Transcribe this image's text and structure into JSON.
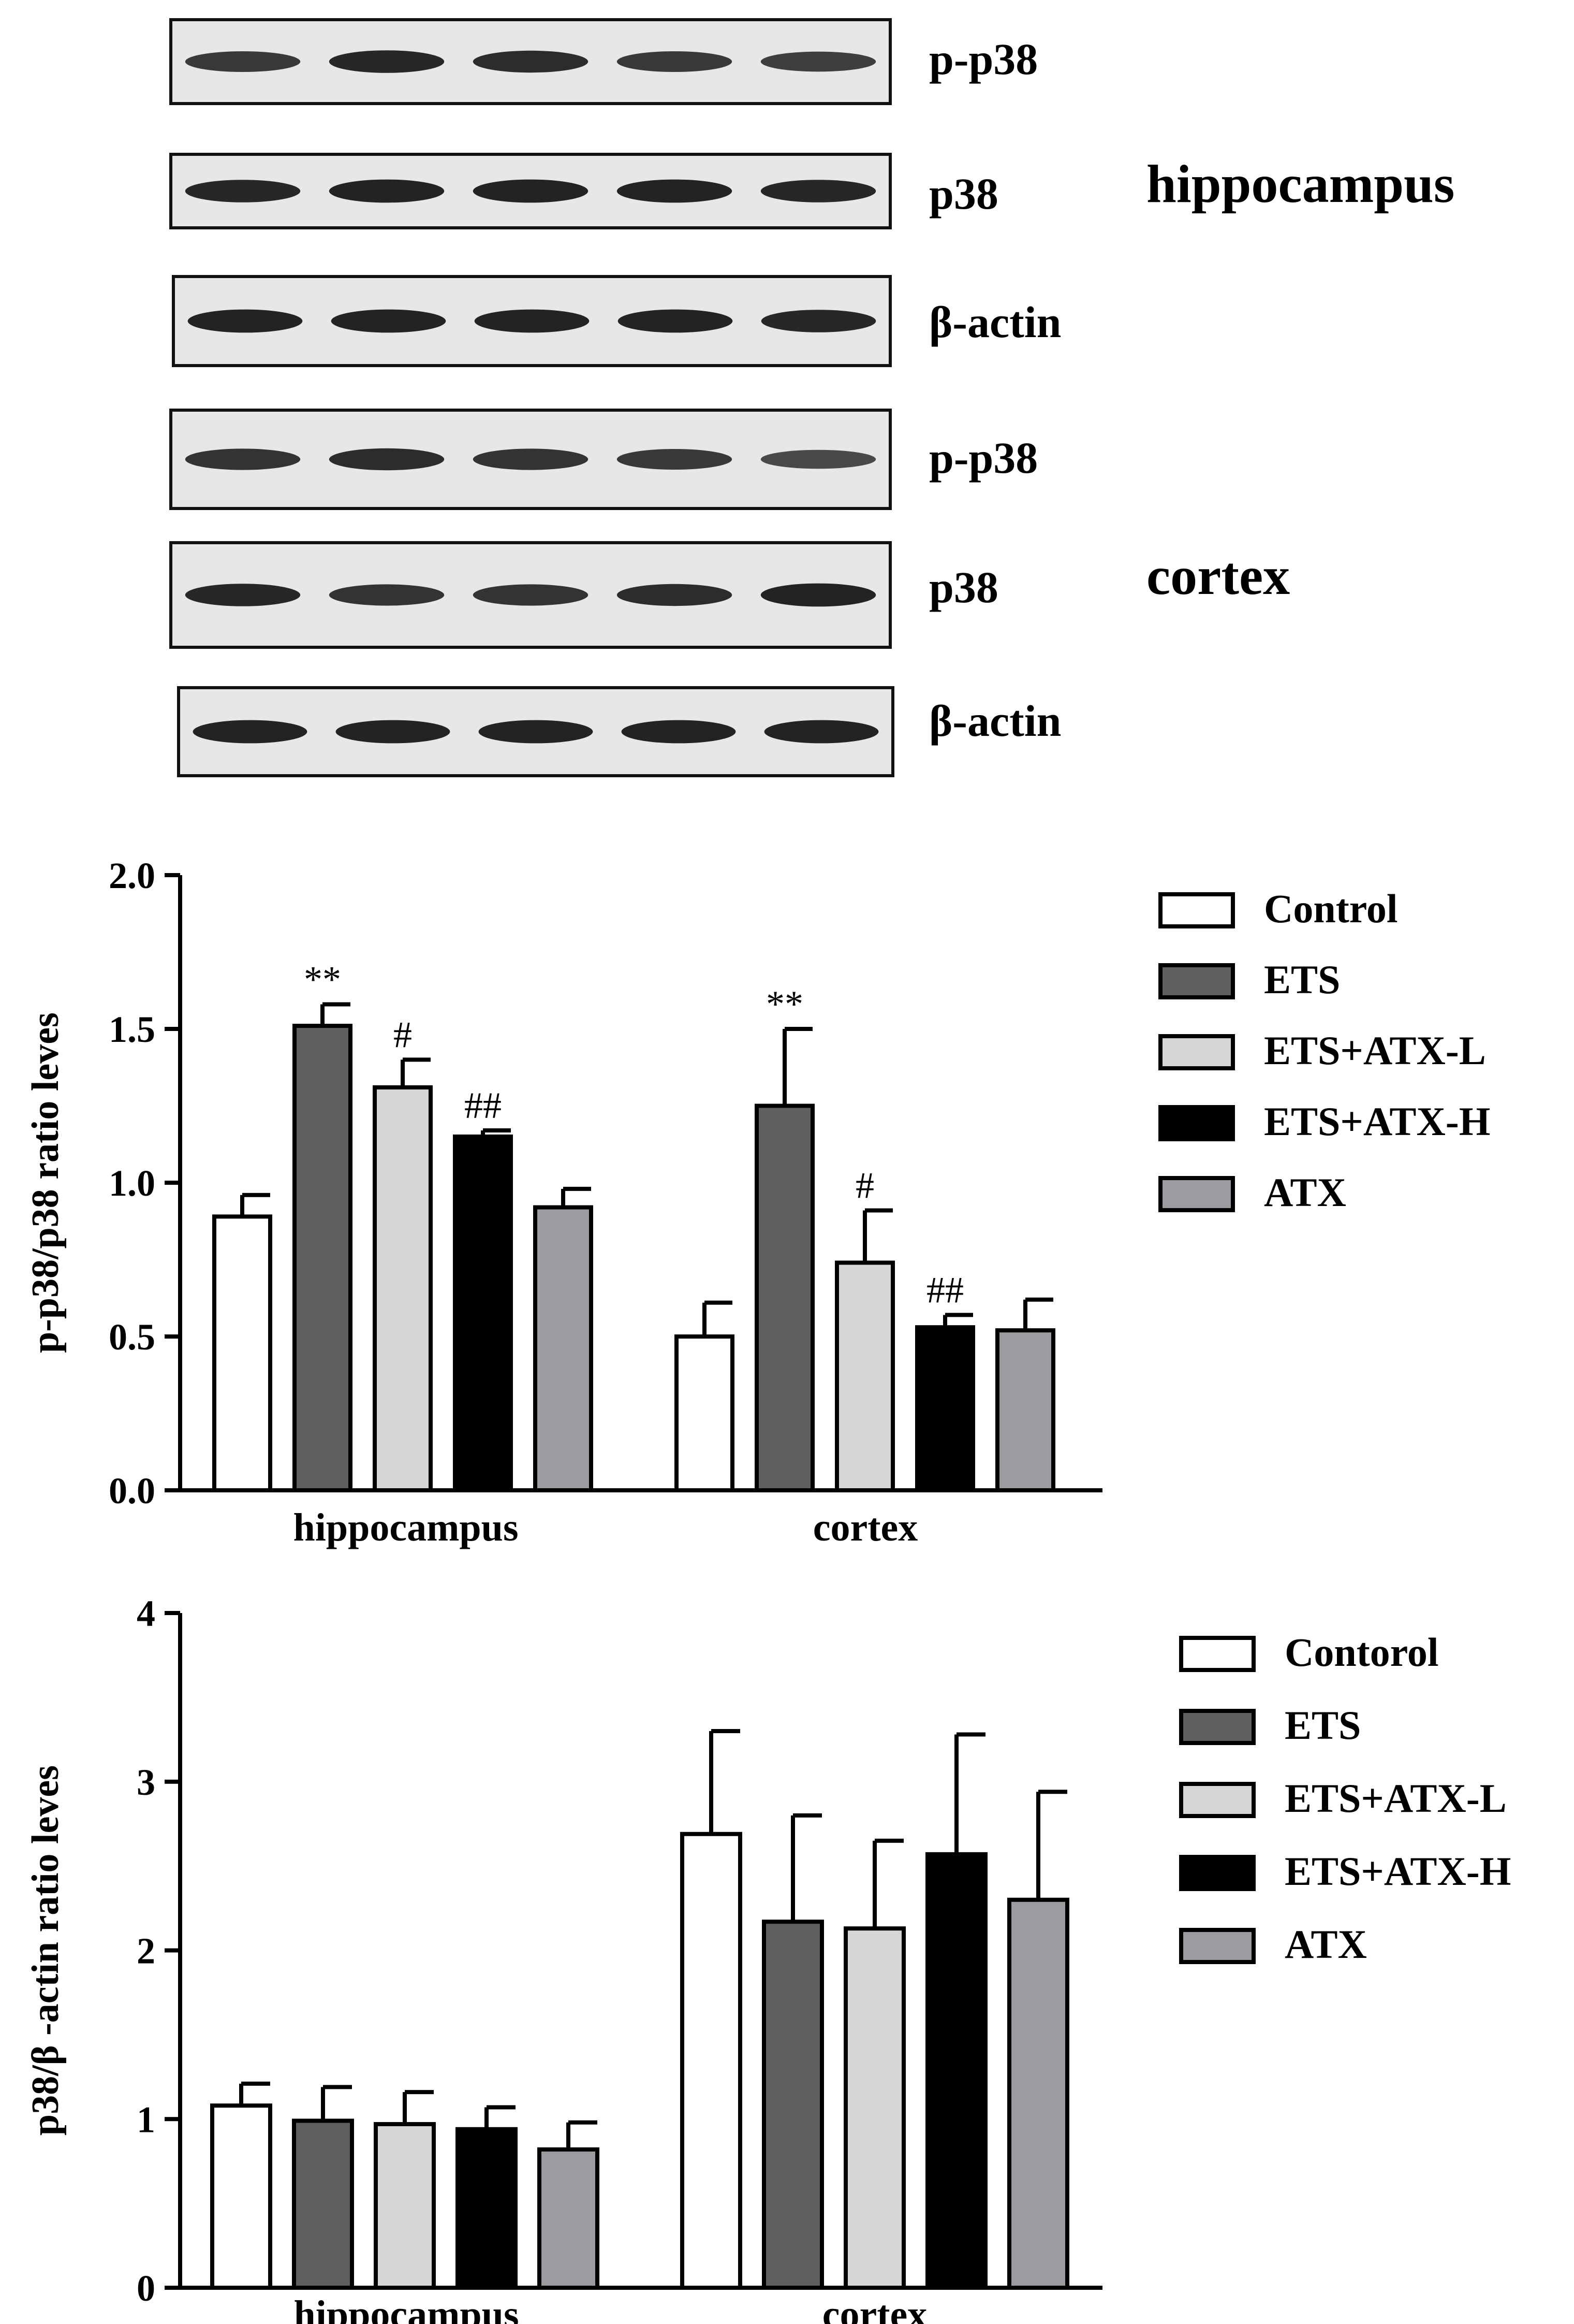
{
  "colors": {
    "control": "#ffffff",
    "ets": "#5f5f5f",
    "ets_atx_l": "#d6d6d6",
    "ets_atx_h": "#000000",
    "atx": "#9c9ca0",
    "blot_bg": "#e7e7e7",
    "band": "#1c1c1c"
  },
  "blots": {
    "lanes": 5,
    "groups": [
      {
        "region": "hippocampus",
        "rows": [
          {
            "label": "p-p38",
            "intensity": [
              0.75,
              0.9,
              0.85,
              0.75,
              0.7
            ]
          },
          {
            "label": "p38",
            "intensity": [
              0.9,
              0.95,
              0.95,
              0.95,
              0.9
            ]
          },
          {
            "label": "β-actin",
            "intensity": [
              0.95,
              0.95,
              0.95,
              0.95,
              0.9
            ]
          }
        ]
      },
      {
        "region": "cortex",
        "rows": [
          {
            "label": "p-p38",
            "intensity": [
              0.8,
              0.85,
              0.8,
              0.75,
              0.6
            ]
          },
          {
            "label": "p38",
            "intensity": [
              0.9,
              0.8,
              0.8,
              0.85,
              0.95
            ]
          },
          {
            "label": "β-actin",
            "intensity": [
              0.95,
              0.95,
              0.95,
              0.95,
              0.95
            ]
          }
        ]
      }
    ]
  },
  "chart_data": [
    {
      "type": "bar",
      "ylabel": "p-p38/p38 ratio leves",
      "categories": [
        "hippocampus",
        "cortex"
      ],
      "ylim": [
        0,
        2.0
      ],
      "yticks": [
        0.0,
        0.5,
        1.0,
        1.5,
        2.0
      ],
      "tick_labels": [
        "0.0",
        "0.5",
        "1.0",
        "1.5",
        "2.0"
      ],
      "legend_position": "right",
      "series": [
        {
          "name": "Control",
          "color_key": "control",
          "values": [
            0.89,
            0.5
          ],
          "errors": [
            0.07,
            0.11
          ],
          "annotations": [
            "",
            ""
          ]
        },
        {
          "name": "ETS",
          "color_key": "ets",
          "values": [
            1.51,
            1.25
          ],
          "errors": [
            0.07,
            0.25
          ],
          "annotations": [
            "**",
            "**"
          ]
        },
        {
          "name": "ETS+ATX-L",
          "color_key": "ets_atx_l",
          "values": [
            1.31,
            0.74
          ],
          "errors": [
            0.09,
            0.17
          ],
          "annotations": [
            "#",
            "#"
          ]
        },
        {
          "name": "ETS+ATX-H",
          "color_key": "ets_atx_h",
          "values": [
            1.15,
            0.53
          ],
          "errors": [
            0.02,
            0.04
          ],
          "annotations": [
            "##",
            "##"
          ]
        },
        {
          "name": "ATX",
          "color_key": "atx",
          "values": [
            0.92,
            0.52
          ],
          "errors": [
            0.06,
            0.1
          ],
          "annotations": [
            "",
            ""
          ]
        }
      ]
    },
    {
      "type": "bar",
      "ylabel": "p38/β -actin ratio leves",
      "categories": [
        "hippocampus",
        "cortex"
      ],
      "ylim": [
        0,
        4
      ],
      "yticks": [
        0,
        1,
        2,
        3,
        4
      ],
      "tick_labels": [
        "0",
        "1",
        "2",
        "3",
        "4"
      ],
      "legend_position": "right",
      "series": [
        {
          "name": "Contorol",
          "color_key": "control",
          "values": [
            1.08,
            2.69
          ],
          "errors": [
            0.13,
            0.61
          ],
          "annotations": [
            "",
            ""
          ]
        },
        {
          "name": "ETS",
          "color_key": "ets",
          "values": [
            0.99,
            2.17
          ],
          "errors": [
            0.2,
            0.63
          ],
          "annotations": [
            "",
            ""
          ]
        },
        {
          "name": "ETS+ATX-L",
          "color_key": "ets_atx_l",
          "values": [
            0.97,
            2.13
          ],
          "errors": [
            0.19,
            0.52
          ],
          "annotations": [
            "",
            ""
          ]
        },
        {
          "name": "ETS+ATX-H",
          "color_key": "ets_atx_h",
          "values": [
            0.94,
            2.57
          ],
          "errors": [
            0.13,
            0.71
          ],
          "annotations": [
            "",
            ""
          ]
        },
        {
          "name": "ATX",
          "color_key": "atx",
          "values": [
            0.82,
            2.3
          ],
          "errors": [
            0.16,
            0.64
          ],
          "annotations": [
            "",
            ""
          ]
        }
      ]
    }
  ]
}
